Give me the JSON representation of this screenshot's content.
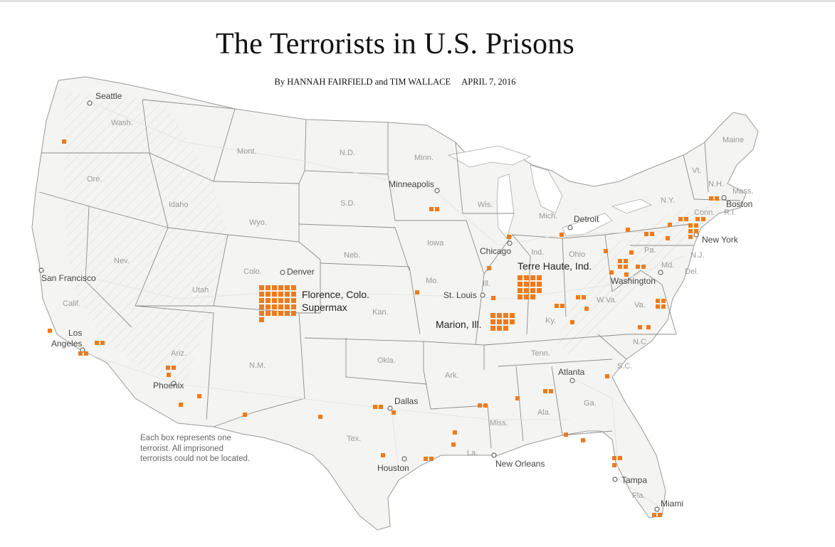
{
  "headline": "The Terrorists in U.S. Prisons",
  "byline": {
    "prefix": "By",
    "author1": "HANNAH FAIRFIELD",
    "joiner": "and",
    "author2": "TIM WALLACE",
    "date": "APRIL 7, 2016"
  },
  "note": {
    "line1": "Each box represents one",
    "line2": "terrorist. All imprisoned",
    "line3": "terrorists could not be located."
  },
  "colors": {
    "marker": "#f07a1a",
    "land": "#f4f4f2",
    "border": "#8a8a8a",
    "state_label": "#9a9a9a",
    "city_label": "#444444"
  },
  "state_labels": {
    "wa": "Wash.",
    "or": "Ore.",
    "ca": "Calif.",
    "nv": "Nev.",
    "id": "Idaho",
    "mt": "Mont.",
    "wy": "Wyo.",
    "ut": "Utah",
    "co": "Colo.",
    "az": "Ariz.",
    "nm": "N.M.",
    "nd": "N.D.",
    "sd": "S.D.",
    "ne": "Neb.",
    "ks": "Kan.",
    "ok": "Okla.",
    "tx": "Tex.",
    "mn": "Minn.",
    "ia": "Iowa",
    "mo": "Mo.",
    "ar": "Ark.",
    "la": "La.",
    "wi": "Wis.",
    "il": "Ill.",
    "mi": "Mich.",
    "in": "Ind.",
    "oh": "Ohio",
    "ky": "Ky.",
    "tn": "Tenn.",
    "ms": "Miss.",
    "al": "Ala.",
    "ga": "Ga.",
    "fl": "Fla.",
    "sc": "S.C.",
    "nc": "N.C.",
    "va": "Va.",
    "wv": "W.Va.",
    "pa": "Pa.",
    "ny": "N.Y.",
    "vt": "Vt.",
    "nh": "N.H.",
    "me": "Maine",
    "ma": "Mass.",
    "ct": "Conn.",
    "ri": "R.I.",
    "nj": "N.J.",
    "md": "Md.",
    "de": "Del."
  },
  "cities": {
    "seattle": "Seattle",
    "san_francisco": "San Francisco",
    "los_angeles_1": "Los",
    "los_angeles_2": "Angeles",
    "phoenix": "Phoenix",
    "denver": "Denver",
    "minneapolis": "Minneapolis",
    "chicago": "Chicago",
    "st_louis": "St. Louis",
    "detroit": "Detroit",
    "dallas": "Dallas",
    "houston": "Houston",
    "new_orleans": "New Orleans",
    "atlanta": "Atlanta",
    "tampa": "Tampa",
    "miami": "Miami",
    "washington": "Washington",
    "new_york": "New York",
    "boston": "Boston"
  },
  "prisons": {
    "florence_1": "Florence, Colo.",
    "florence_2": "Supermax",
    "terre_haute": "Terre Haute, Ind.",
    "marion": "Marion, Ill."
  }
}
